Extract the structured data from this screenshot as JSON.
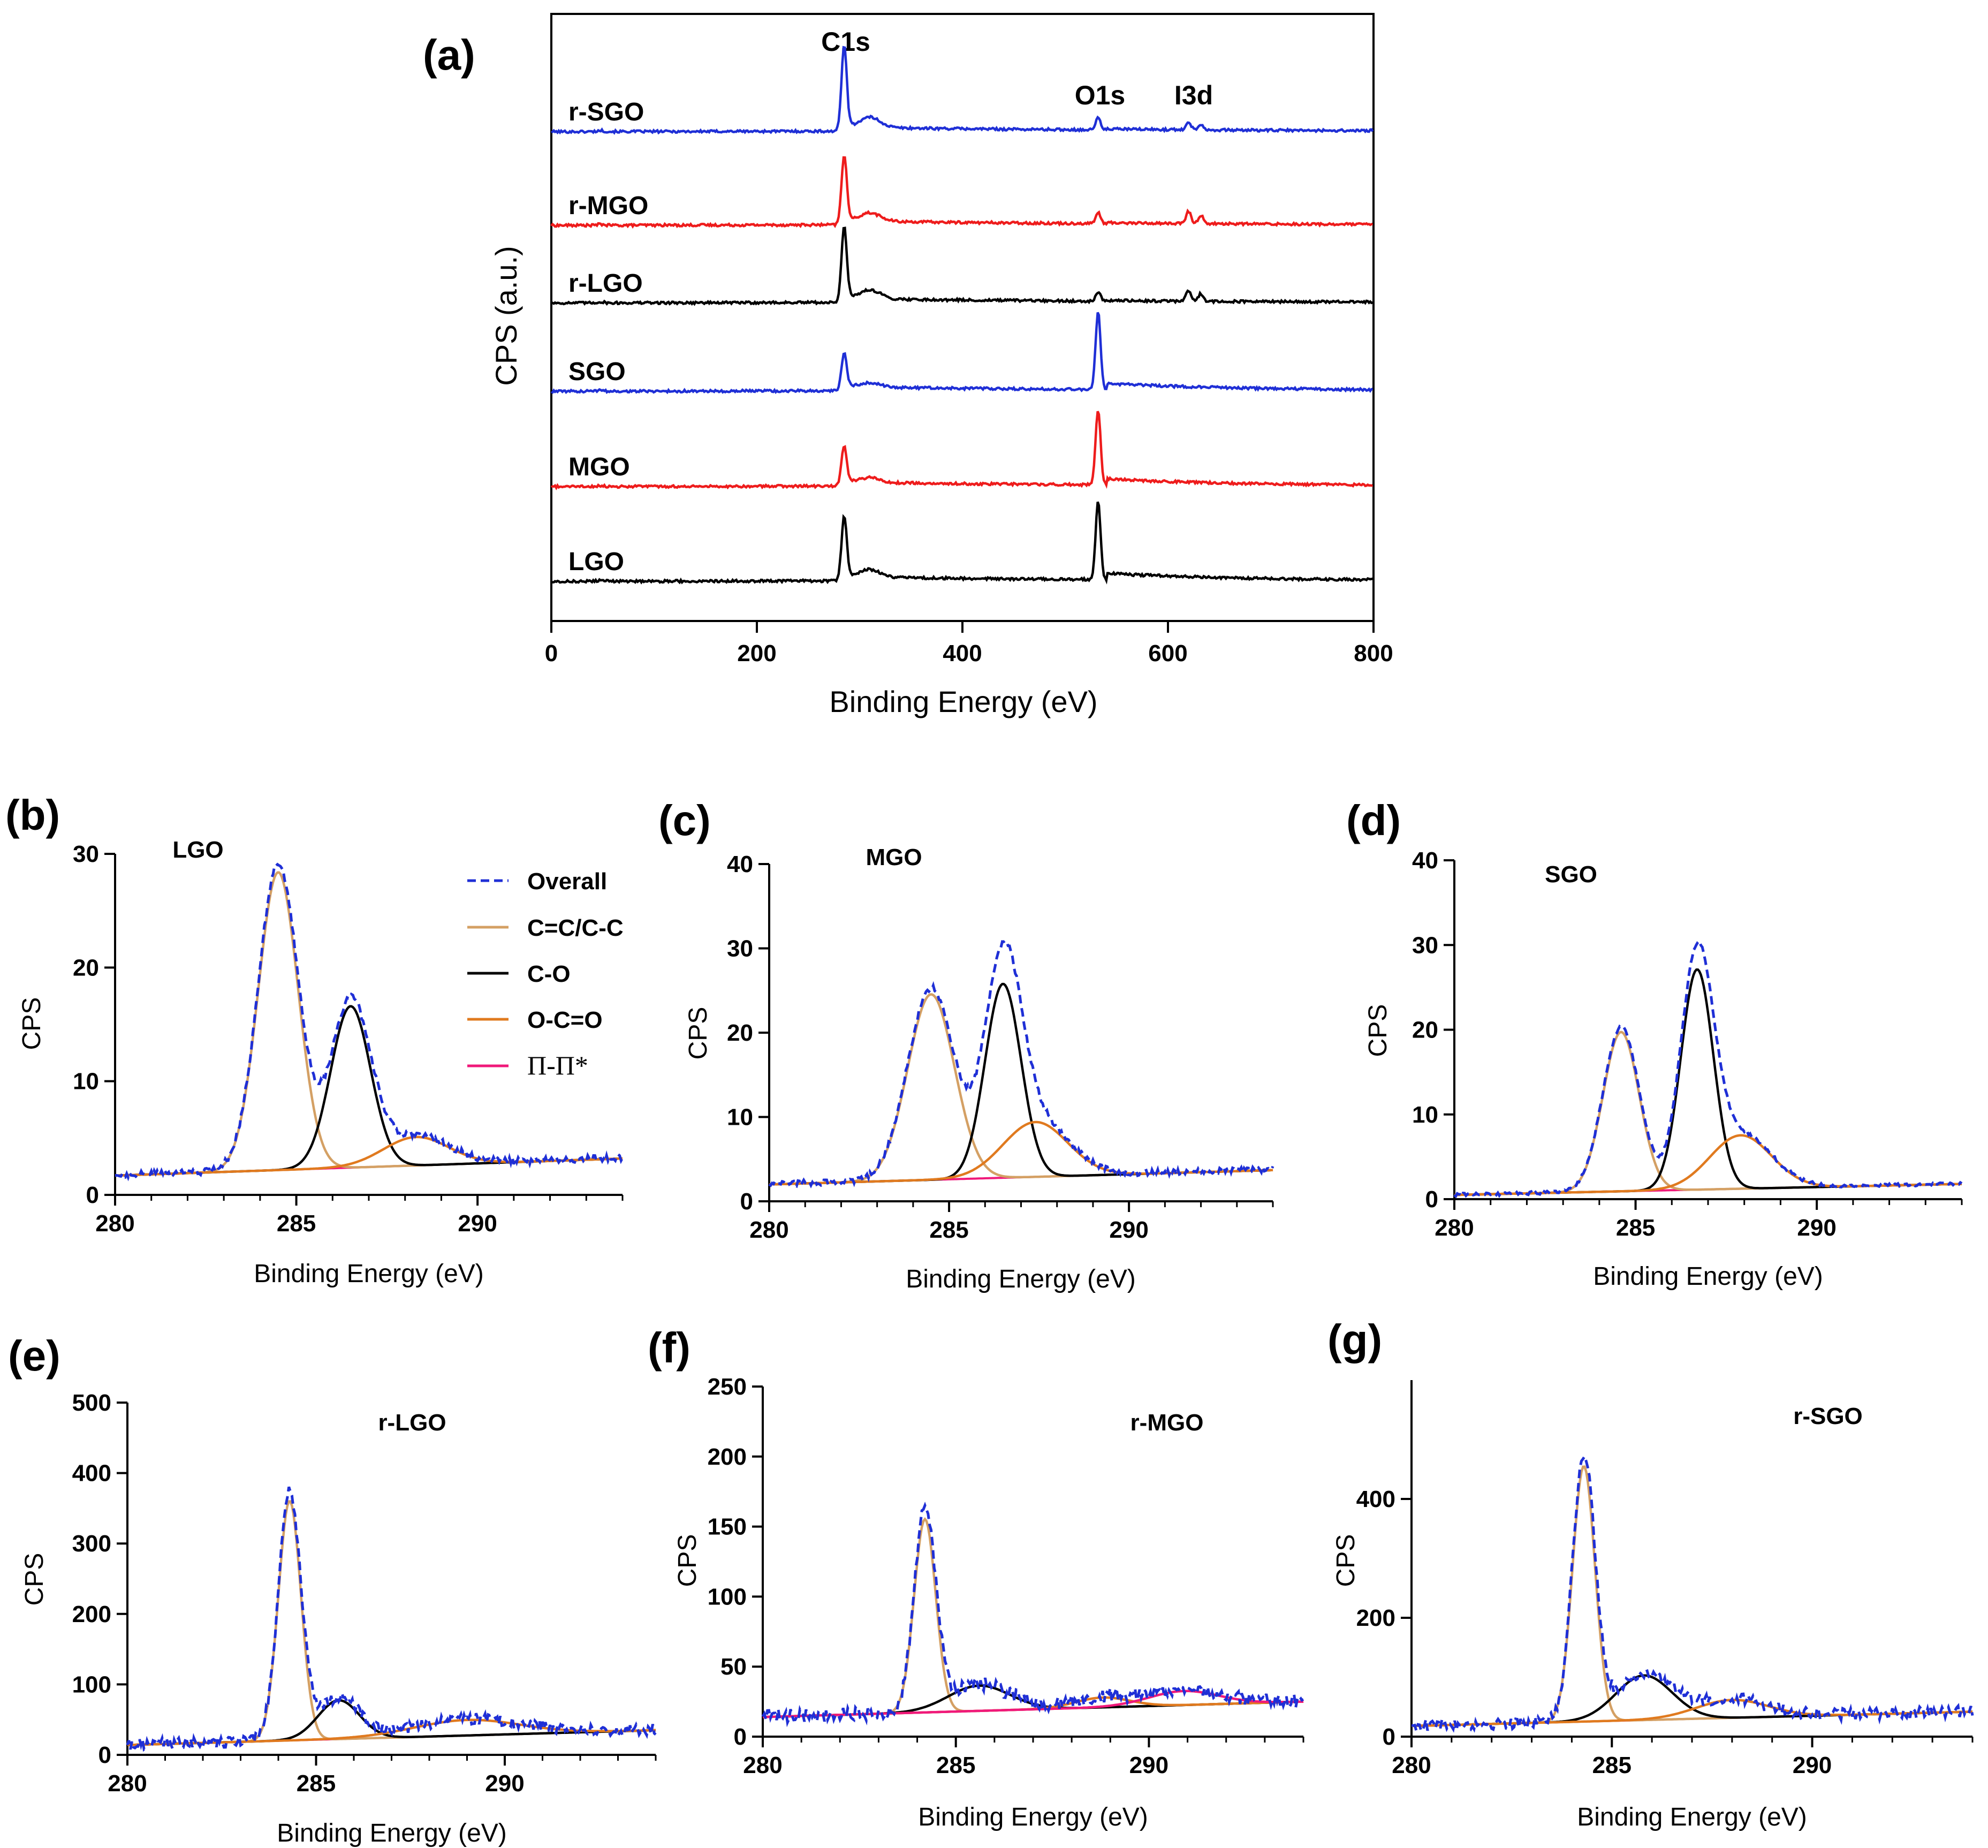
{
  "colors": {
    "overall": "#1f2fd6",
    "cc": "#d4a064",
    "co": "#000000",
    "occo": "#e07a1f",
    "pipi": "#f0197a",
    "survey_blue": "#1f2fd6",
    "survey_red": "#ee1c1c",
    "survey_black": "#000000"
  },
  "legend": {
    "overall": "Overall",
    "cc": "C=C/C-C",
    "co": "C-O",
    "occo": "O-C=O",
    "pipi": "Π-Π*"
  },
  "chart_data": [
    {
      "id": "a",
      "panel_label": "(a)",
      "type": "line",
      "title": "",
      "xlabel": "Binding Energy (eV)",
      "ylabel": "CPS (a.u.)",
      "xlim": [
        0,
        800
      ],
      "xticks": [
        0,
        200,
        400,
        600,
        800
      ],
      "peak_labels": [
        {
          "text": "C1s",
          "x": 285
        },
        {
          "text": "O1s",
          "x": 532
        },
        {
          "text": "I3d",
          "x": 625
        }
      ],
      "series": [
        {
          "name": "r-SGO",
          "color": "blue",
          "baseline": 5,
          "heights": {
            "c1s": 3.2,
            "o1s": 0.45,
            "i3d": 0.3
          }
        },
        {
          "name": "r-MGO",
          "color": "red",
          "baseline": 4,
          "heights": {
            "c1s": 2.6,
            "o1s": 0.4,
            "i3d": 0.45
          }
        },
        {
          "name": "r-LGO",
          "color": "black",
          "baseline": 3,
          "heights": {
            "c1s": 2.8,
            "o1s": 0.35,
            "i3d": 0.4
          }
        },
        {
          "name": "SGO",
          "color": "blue",
          "baseline": 2,
          "heights": {
            "c1s": 1.4,
            "o1s": 2.9,
            "i3d": 0
          }
        },
        {
          "name": "MGO",
          "color": "red",
          "baseline": 1,
          "heights": {
            "c1s": 1.5,
            "o1s": 2.8,
            "i3d": 0
          }
        },
        {
          "name": "LGO",
          "color": "black",
          "baseline": 0,
          "heights": {
            "c1s": 2.4,
            "o1s": 2.9,
            "i3d": 0
          }
        }
      ]
    },
    {
      "id": "b",
      "panel_label": "(b)",
      "type": "line",
      "sample": "LGO",
      "xlabel": "Binding Energy (eV)",
      "ylabel": "CPS",
      "xlim": [
        280,
        294
      ],
      "ylim": [
        0,
        30
      ],
      "xticks": [
        280,
        285,
        290
      ],
      "yticks": [
        0,
        10,
        20,
        30
      ],
      "background": {
        "start": 1.7,
        "end": 3.2
      },
      "components": [
        {
          "key": "cc",
          "center": 284.5,
          "amplitude": 26.2,
          "width": 0.55
        },
        {
          "key": "co",
          "center": 286.5,
          "amplitude": 14.2,
          "width": 0.55
        },
        {
          "key": "occo",
          "center": 288.3,
          "amplitude": 2.5,
          "width": 0.9
        }
      ],
      "noise": 0.3
    },
    {
      "id": "c",
      "panel_label": "(c)",
      "type": "line",
      "sample": "MGO",
      "xlabel": "Binding Energy (eV)",
      "ylabel": "CPS",
      "xlim": [
        280,
        294
      ],
      "ylim": [
        0,
        40
      ],
      "xticks": [
        280,
        285,
        290
      ],
      "yticks": [
        0,
        10,
        20,
        30,
        40
      ],
      "background": {
        "start": 2.0,
        "end": 3.7
      },
      "components": [
        {
          "key": "cc",
          "center": 284.5,
          "amplitude": 22.0,
          "width": 0.65
        },
        {
          "key": "co",
          "center": 286.5,
          "amplitude": 23.0,
          "width": 0.5
        },
        {
          "key": "occo",
          "center": 287.4,
          "amplitude": 6.5,
          "width": 0.9
        }
      ],
      "noise": 0.35
    },
    {
      "id": "d",
      "panel_label": "(d)",
      "type": "line",
      "sample": "SGO",
      "xlabel": "Binding Energy (eV)",
      "ylabel": "CPS",
      "xlim": [
        280,
        294
      ],
      "ylim": [
        0,
        40
      ],
      "xticks": [
        280,
        285,
        290
      ],
      "yticks": [
        0,
        10,
        20,
        30,
        40
      ],
      "background": {
        "start": 0.5,
        "end": 1.8
      },
      "components": [
        {
          "key": "cc",
          "center": 284.6,
          "amplitude": 18.8,
          "width": 0.5
        },
        {
          "key": "co",
          "center": 286.7,
          "amplitude": 26.0,
          "width": 0.45
        },
        {
          "key": "occo",
          "center": 287.9,
          "amplitude": 6.3,
          "width": 0.85
        }
      ],
      "noise": 0.2
    },
    {
      "id": "e",
      "panel_label": "(e)",
      "type": "line",
      "sample": "r-LGO",
      "xlabel": "Binding Energy (eV)",
      "ylabel": "CPS",
      "xlim": [
        280,
        294
      ],
      "ylim": [
        0,
        500
      ],
      "xticks": [
        280,
        285,
        290
      ],
      "yticks": [
        0,
        100,
        200,
        300,
        400,
        500
      ],
      "background": {
        "start": 14,
        "end": 35
      },
      "components": [
        {
          "key": "cc",
          "center": 284.3,
          "amplitude": 340,
          "width": 0.3
        },
        {
          "key": "co",
          "center": 285.6,
          "amplitude": 55,
          "width": 0.55
        },
        {
          "key": "occo",
          "center": 289.0,
          "amplitude": 22,
          "width": 1.4
        }
      ],
      "noise": 8
    },
    {
      "id": "f",
      "panel_label": "(f)",
      "type": "line",
      "sample": "r-MGO",
      "xlabel": "Binding Energy (eV)",
      "ylabel": "CPS",
      "xlim": [
        280,
        294
      ],
      "ylim": [
        0,
        250
      ],
      "xticks": [
        280,
        285,
        290
      ],
      "yticks": [
        0,
        50,
        100,
        150,
        200,
        250
      ],
      "background": {
        "start": 14,
        "end": 25
      },
      "components": [
        {
          "key": "cc",
          "center": 284.2,
          "amplitude": 138,
          "width": 0.28
        },
        {
          "key": "co",
          "center": 285.6,
          "amplitude": 18,
          "width": 0.8
        },
        {
          "key": "occo",
          "center": 288.8,
          "amplitude": 7,
          "width": 0.7
        },
        {
          "key": "pipi",
          "center": 290.9,
          "amplitude": 10,
          "width": 0.9
        }
      ],
      "noise": 5
    },
    {
      "id": "g",
      "panel_label": "(g)",
      "type": "line",
      "sample": "r-SGO",
      "xlabel": "Binding Energy (eV)",
      "ylabel": "CPS",
      "xlim": [
        280,
        294
      ],
      "ylim": [
        0,
        600
      ],
      "xticks": [
        280,
        285,
        290
      ],
      "yticks": [
        0,
        200,
        400
      ],
      "background": {
        "start": 18,
        "end": 42
      },
      "components": [
        {
          "key": "cc",
          "center": 284.3,
          "amplitude": 430,
          "width": 0.28
        },
        {
          "key": "co",
          "center": 285.8,
          "amplitude": 75,
          "width": 0.7
        },
        {
          "key": "occo",
          "center": 288.0,
          "amplitude": 30,
          "width": 0.9
        }
      ],
      "noise": 10
    }
  ]
}
